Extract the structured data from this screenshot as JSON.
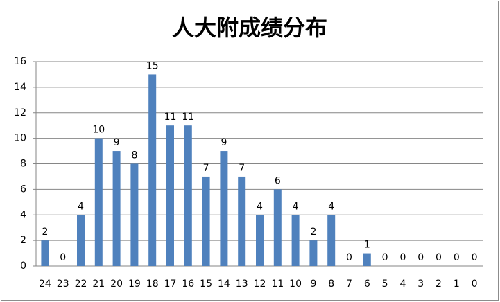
{
  "chart_data": {
    "type": "bar",
    "title": "人大附成绩分布",
    "categories": [
      "24",
      "23",
      "22",
      "21",
      "20",
      "19",
      "18",
      "17",
      "16",
      "15",
      "14",
      "13",
      "12",
      "11",
      "10",
      "9",
      "8",
      "7",
      "6",
      "5",
      "4",
      "3",
      "2",
      "1",
      "0"
    ],
    "values": [
      2,
      0,
      4,
      10,
      9,
      8,
      15,
      11,
      11,
      7,
      9,
      7,
      4,
      6,
      4,
      2,
      4,
      0,
      1,
      0,
      0,
      0,
      0,
      0,
      0
    ],
    "color": "#4f81bd",
    "ylim": [
      0,
      16
    ],
    "yticks": [
      0,
      2,
      4,
      6,
      8,
      10,
      12,
      14,
      16
    ],
    "grid": true,
    "data_labels": true
  }
}
